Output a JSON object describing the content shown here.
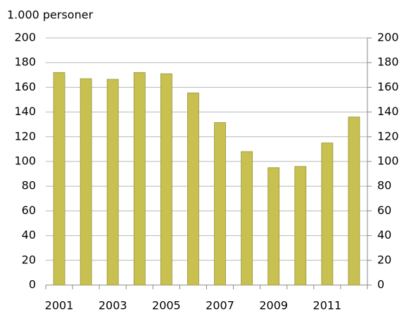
{
  "chart_data": {
    "type": "bar",
    "ylabel": "1.000 personer",
    "categories": [
      "2001",
      null,
      "2003",
      null,
      "2005",
      null,
      "2007",
      null,
      "2009",
      null,
      "2011",
      null
    ],
    "values": [
      172,
      167,
      166.5,
      172,
      171,
      155.5,
      131.5,
      108,
      95,
      96,
      115,
      136
    ],
    "color": "#c8c050",
    "ylim": [
      0,
      200
    ],
    "yticks": [
      0,
      20,
      40,
      60,
      80,
      100,
      120,
      140,
      160,
      180,
      200
    ],
    "y2lim": [
      0,
      200
    ],
    "y2ticks": [
      0,
      20,
      40,
      60,
      80,
      100,
      120,
      140,
      160,
      180,
      200
    ],
    "grid": true
  }
}
